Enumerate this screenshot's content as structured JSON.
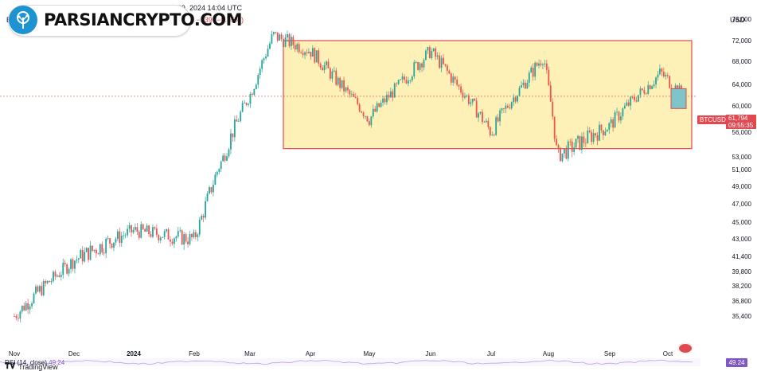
{
  "header": {
    "publisher_line": "lubal published on TradingView.com, Oct 09, 2024 14:04 UTC",
    "prefix": "B",
    "price_change": "94  −339 (−0.55%)",
    "currency": "USD"
  },
  "watermark": {
    "text": "PARSIANCRYPTO.COM"
  },
  "symbol": {
    "ticker": "BTCUSD",
    "last_price": "61,794",
    "countdown": "09:55:35"
  },
  "rsi": {
    "label": "RSI (14, close)",
    "value": "49.24",
    "badge": "49.24"
  },
  "footer": {
    "brand": "TradingView"
  },
  "colors": {
    "up": "#26a69a",
    "down": "#ef5350",
    "range_fill": "#fdf1b8",
    "range_border": "#e0494f",
    "rsi_line": "#7e57c2"
  },
  "chart_data": {
    "type": "candlestick",
    "symbol": "BTCUSD",
    "y_ticks": [
      "76,000",
      "72,000",
      "68,000",
      "64,000",
      "60,000",
      "56,000",
      "53,000",
      "51,000",
      "49,000",
      "47,000",
      "45,000",
      "43,000",
      "41,400",
      "39,800",
      "38,200",
      "36,800",
      "35,400"
    ],
    "x_ticks": [
      "Nov",
      "Dec",
      "2024",
      "Feb",
      "Mar",
      "Apr",
      "May",
      "Jun",
      "Jul",
      "Aug",
      "Sep",
      "Oct"
    ],
    "range_box": {
      "low": 54000,
      "high": 72000,
      "from": "Mar",
      "to": "Oct"
    },
    "last_price": 61794,
    "approx_path": [
      {
        "date": "Nov",
        "close": 35400
      },
      {
        "date": "Dec",
        "close": 41000
      },
      {
        "date": "2024",
        "close": 44000
      },
      {
        "date": "Feb",
        "close": 43000
      },
      {
        "date": "Mar",
        "close": 62000
      },
      {
        "date": "Mar 14",
        "close": 73000
      },
      {
        "date": "Apr",
        "close": 70000
      },
      {
        "date": "May",
        "close": 58000
      },
      {
        "date": "Jun",
        "close": 70000
      },
      {
        "date": "Jul",
        "close": 56000
      },
      {
        "date": "Jul 29",
        "close": 69000
      },
      {
        "date": "Aug",
        "close": 53000
      },
      {
        "date": "Sep",
        "close": 57000
      },
      {
        "date": "Sep 27",
        "close": 66000
      },
      {
        "date": "Oct",
        "close": 61794
      }
    ]
  }
}
